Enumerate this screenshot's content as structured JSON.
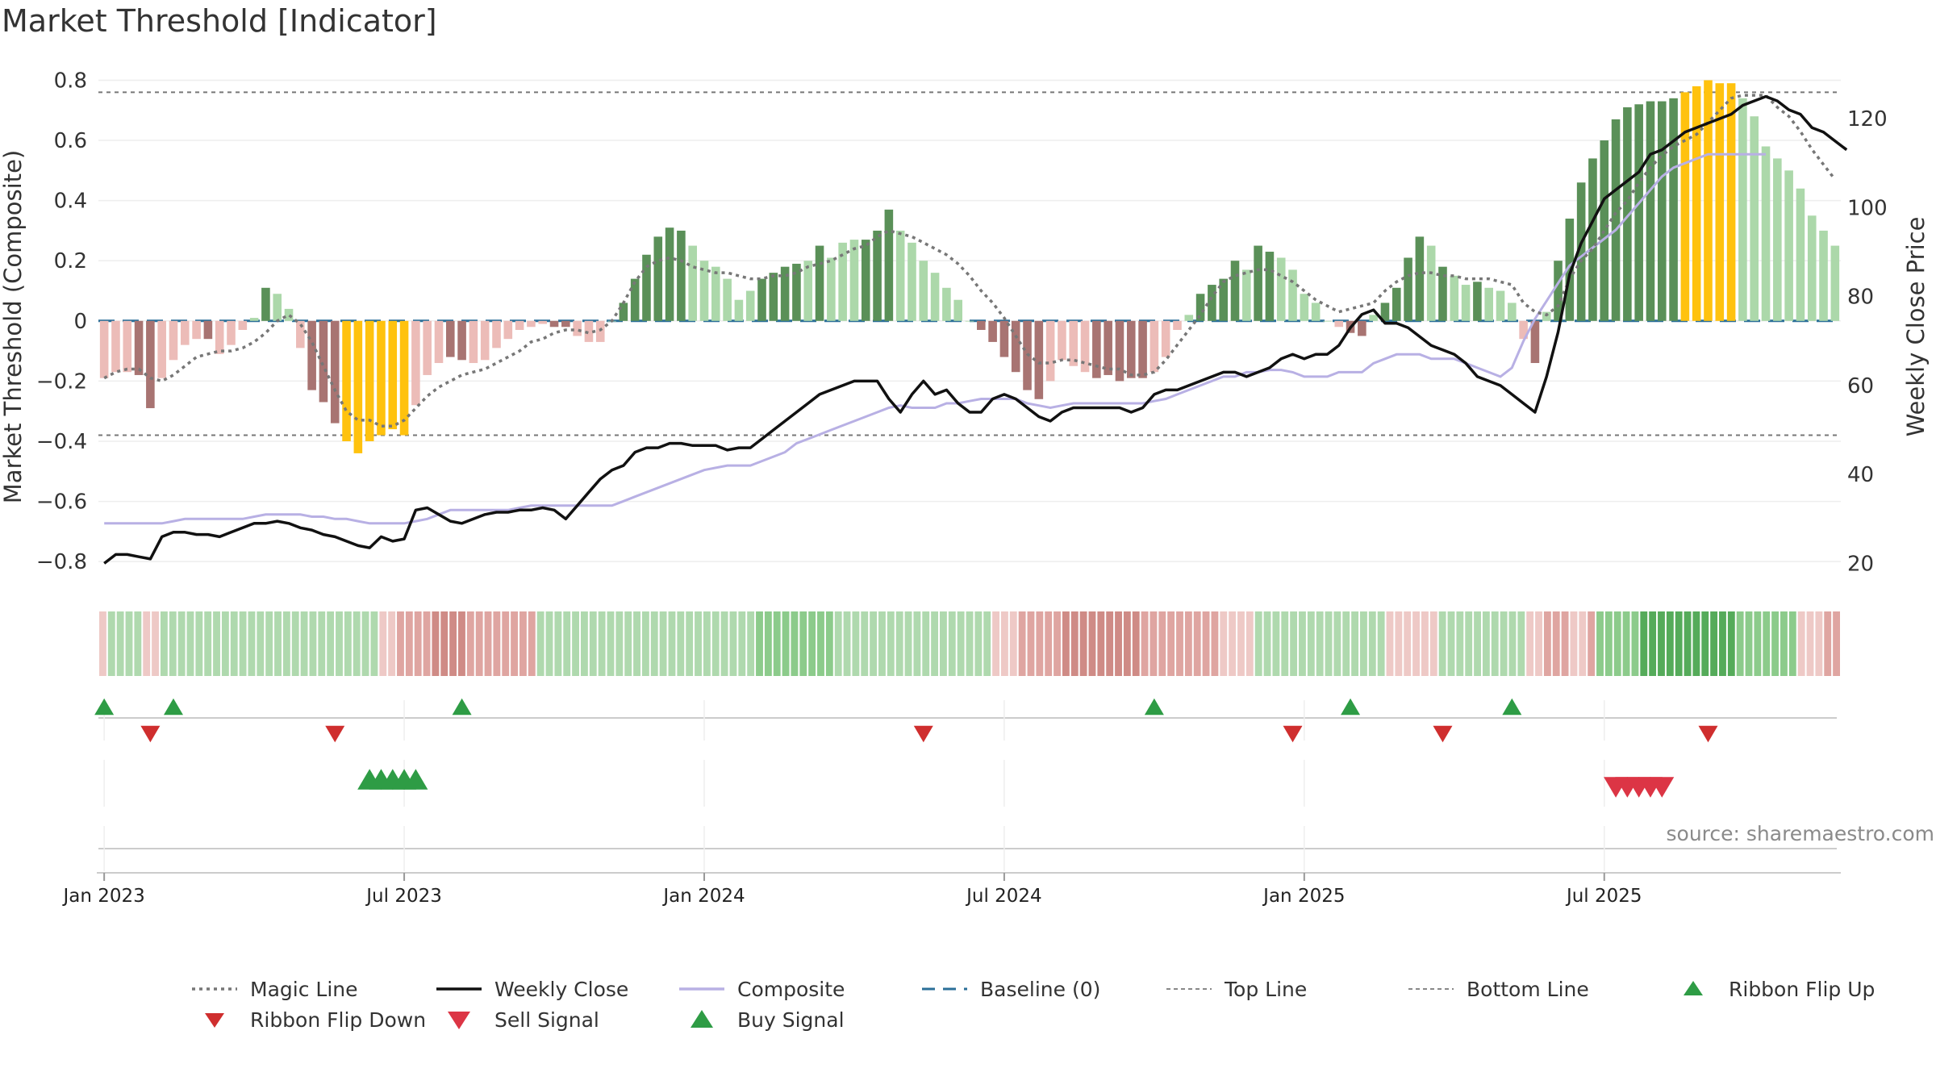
{
  "chart_data": {
    "type": "bar",
    "title": "Market Threshold [Indicator]",
    "ylabel_left": "Market Threshold (Composite)",
    "ylabel_right": "Weekly Close Price",
    "ylim_left": [
      -0.88,
      0.82
    ],
    "ylim_right": [
      15,
      130
    ],
    "left_ticks": [
      "0.8",
      "0.6",
      "0.4",
      "0.2",
      "0",
      "−0.2",
      "−0.4",
      "−0.6",
      "−0.8"
    ],
    "left_tick_values": [
      0.8,
      0.6,
      0.4,
      0.2,
      0,
      -0.2,
      -0.4,
      -0.6,
      -0.8
    ],
    "right_ticks": [
      "120",
      "100",
      "80",
      "60",
      "40",
      "20"
    ],
    "right_tick_values": [
      120,
      100,
      80,
      60,
      40,
      20
    ],
    "x_labels": [
      "Jan 2023",
      "Jul 2023",
      "Jan 2024",
      "Jul 2024",
      "Jan 2025",
      "Jul 2025"
    ],
    "x_label_weeks": [
      0,
      26,
      52,
      78,
      104,
      130
    ],
    "top_line": 0.76,
    "bottom_line": -0.38,
    "baseline": 0,
    "grid": true,
    "source": "source: sharemaestro.com",
    "colors": {
      "bull_strong": "#5a9058",
      "bull_weak": "#acd8aa",
      "bear_strong": "#a87472",
      "bear_weak": "#ecbcb8",
      "extreme": "#ffc20e",
      "close": "#111111",
      "composite": "#b8b0e4",
      "magic": "#777777",
      "baseline": "#2b6f98",
      "flip_up": "#2e9c45",
      "flip_down": "#cf2e2e",
      "sell": "#dc3545",
      "buy": "#2e9c45"
    },
    "composite_bars": [
      -0.19,
      -0.17,
      -0.17,
      -0.18,
      -0.29,
      -0.19,
      -0.13,
      -0.08,
      -0.06,
      -0.06,
      -0.11,
      -0.08,
      -0.03,
      0.01,
      0.11,
      0.09,
      0.04,
      -0.09,
      -0.23,
      -0.27,
      -0.34,
      -0.4,
      -0.44,
      -0.4,
      -0.38,
      -0.36,
      -0.38,
      -0.28,
      -0.18,
      -0.14,
      -0.12,
      -0.13,
      -0.14,
      -0.13,
      -0.09,
      -0.06,
      -0.03,
      -0.02,
      -0.01,
      -0.02,
      -0.02,
      -0.05,
      -0.07,
      -0.07,
      0.0,
      0.06,
      0.14,
      0.22,
      0.28,
      0.31,
      0.3,
      0.25,
      0.2,
      0.18,
      0.14,
      0.07,
      0.1,
      0.14,
      0.16,
      0.18,
      0.19,
      0.2,
      0.25,
      0.21,
      0.26,
      0.27,
      0.27,
      0.3,
      0.37,
      0.3,
      0.26,
      0.2,
      0.16,
      0.11,
      0.07,
      0.0,
      -0.03,
      -0.07,
      -0.12,
      -0.17,
      -0.23,
      -0.26,
      -0.2,
      -0.13,
      -0.15,
      -0.17,
      -0.19,
      -0.18,
      -0.2,
      -0.19,
      -0.19,
      -0.17,
      -0.12,
      -0.03,
      0.02,
      0.09,
      0.12,
      0.14,
      0.2,
      0.17,
      0.25,
      0.23,
      0.21,
      0.17,
      0.09,
      0.06,
      0.0,
      -0.02,
      -0.04,
      -0.05,
      0.02,
      0.06,
      0.11,
      0.21,
      0.28,
      0.25,
      0.18,
      0.15,
      0.12,
      0.13,
      0.11,
      0.1,
      0.06,
      -0.06,
      -0.14,
      0.03,
      0.2,
      0.34,
      0.46,
      0.54,
      0.6,
      0.67,
      0.71,
      0.72,
      0.73,
      0.73,
      0.74,
      0.76,
      0.78,
      0.8,
      0.79,
      0.79,
      0.74,
      0.68,
      0.58,
      0.54,
      0.5,
      0.44,
      0.35,
      0.3,
      0.25
    ],
    "bar_classes": [
      "bw",
      "bw",
      "bw",
      "bs",
      "bs",
      "bw",
      "bw",
      "bw",
      "bw",
      "bs",
      "bw",
      "bw",
      "bw",
      "gw",
      "gs",
      "gw",
      "gw",
      "bw",
      "bs",
      "bs",
      "bs",
      "ex",
      "ex",
      "ex",
      "ex",
      "ex",
      "ex",
      "bw",
      "bw",
      "bw",
      "bs",
      "bs",
      "bw",
      "bw",
      "bw",
      "bw",
      "bw",
      "bw",
      "bw",
      "bs",
      "bs",
      "bw",
      "bw",
      "bw",
      "gw",
      "gs",
      "gs",
      "gs",
      "gs",
      "gs",
      "gs",
      "gw",
      "gw",
      "gw",
      "gw",
      "gw",
      "gw",
      "gs",
      "gs",
      "gs",
      "gs",
      "gw",
      "gs",
      "gw",
      "gw",
      "gw",
      "gs",
      "gs",
      "gs",
      "gw",
      "gw",
      "gw",
      "gw",
      "gw",
      "gw",
      "gw",
      "bs",
      "bs",
      "bs",
      "bs",
      "bs",
      "bs",
      "bw",
      "bw",
      "bw",
      "bw",
      "bs",
      "bs",
      "bs",
      "bs",
      "bs",
      "bw",
      "bw",
      "bw",
      "gw",
      "gs",
      "gs",
      "gs",
      "gs",
      "gw",
      "gs",
      "gs",
      "gw",
      "gw",
      "gw",
      "gw",
      "gw",
      "bw",
      "bs",
      "bs",
      "gw",
      "gs",
      "gs",
      "gs",
      "gs",
      "gw",
      "gs",
      "gw",
      "gw",
      "gs",
      "gw",
      "gw",
      "gw",
      "bw",
      "bs",
      "gw",
      "gs",
      "gs",
      "gs",
      "gs",
      "gs",
      "gs",
      "gs",
      "gs",
      "gs",
      "gs",
      "gs",
      "ex",
      "ex",
      "ex",
      "ex",
      "ex",
      "gw",
      "gw",
      "gw",
      "gw",
      "gw",
      "gw",
      "gw",
      "gw",
      "gw"
    ],
    "magic_line": [
      -0.19,
      -0.17,
      -0.16,
      -0.16,
      -0.19,
      -0.2,
      -0.18,
      -0.15,
      -0.12,
      -0.11,
      -0.1,
      -0.1,
      -0.09,
      -0.07,
      -0.04,
      0.0,
      0.02,
      -0.01,
      -0.07,
      -0.15,
      -0.23,
      -0.3,
      -0.33,
      -0.33,
      -0.35,
      -0.35,
      -0.33,
      -0.29,
      -0.25,
      -0.22,
      -0.2,
      -0.18,
      -0.17,
      -0.16,
      -0.14,
      -0.12,
      -0.1,
      -0.07,
      -0.06,
      -0.04,
      -0.03,
      -0.03,
      -0.04,
      -0.03,
      0.0,
      0.06,
      0.13,
      0.18,
      0.2,
      0.21,
      0.2,
      0.18,
      0.17,
      0.16,
      0.16,
      0.15,
      0.14,
      0.14,
      0.15,
      0.15,
      0.16,
      0.18,
      0.19,
      0.2,
      0.22,
      0.24,
      0.25,
      0.28,
      0.3,
      0.29,
      0.28,
      0.26,
      0.24,
      0.22,
      0.19,
      0.15,
      0.1,
      0.06,
      0.01,
      -0.05,
      -0.11,
      -0.14,
      -0.14,
      -0.13,
      -0.13,
      -0.14,
      -0.15,
      -0.16,
      -0.16,
      -0.18,
      -0.18,
      -0.17,
      -0.13,
      -0.08,
      -0.03,
      0.02,
      0.08,
      0.13,
      0.15,
      0.16,
      0.17,
      0.17,
      0.15,
      0.13,
      0.1,
      0.07,
      0.05,
      0.03,
      0.04,
      0.05,
      0.06,
      0.1,
      0.13,
      0.15,
      0.16,
      0.16,
      0.15,
      0.15,
      0.14,
      0.14,
      0.14,
      0.13,
      0.12,
      0.06,
      0.03,
      0.02,
      0.05,
      0.14,
      0.2,
      0.24,
      0.3,
      0.36,
      0.4,
      0.46,
      0.51,
      0.55,
      0.58,
      0.6,
      0.62,
      0.66,
      0.7,
      0.74,
      0.75,
      0.75,
      0.75,
      0.71,
      0.68,
      0.63,
      0.57,
      0.52,
      0.47
    ],
    "composite_line": [
      29,
      29,
      29,
      29,
      29,
      29,
      29.5,
      30,
      30,
      30,
      30,
      30,
      30,
      30.5,
      31,
      31,
      31,
      31,
      30.5,
      30.5,
      30,
      30,
      29.5,
      29,
      29,
      29,
      29,
      29.5,
      30,
      31,
      32,
      32,
      32,
      32,
      32,
      32,
      32.5,
      33,
      33,
      33,
      33,
      33,
      33,
      33,
      33,
      34,
      35,
      36,
      37,
      38,
      39,
      40,
      41,
      41.5,
      42,
      42,
      42,
      43,
      44,
      45,
      47,
      48,
      49,
      50,
      51,
      52,
      53,
      54,
      55,
      55.5,
      55,
      55,
      55,
      56,
      56,
      56.5,
      57,
      57,
      57,
      57,
      56,
      55.5,
      55,
      55.5,
      56,
      56,
      56,
      56,
      56,
      56,
      56,
      56.5,
      57,
      58,
      59,
      60,
      61,
      62,
      62,
      63,
      63,
      63.5,
      63.5,
      63,
      62,
      62,
      62,
      63,
      63,
      63,
      65,
      66,
      67,
      67,
      67,
      66,
      66,
      66,
      65,
      64,
      63,
      62,
      64,
      70,
      75,
      79,
      83,
      87,
      89,
      91,
      93,
      95,
      98,
      101,
      104,
      107,
      109,
      110,
      111,
      112,
      112,
      112,
      112,
      112,
      112
    ],
    "weekly_close": [
      20,
      22,
      22,
      21.5,
      21,
      26,
      27,
      27,
      26.5,
      26.5,
      26,
      27,
      28,
      29,
      29,
      29.5,
      29,
      28,
      27.5,
      26.5,
      26,
      25,
      24,
      23.5,
      26,
      25,
      25.5,
      32,
      32.5,
      31,
      29.5,
      29,
      30,
      31,
      31.5,
      31.5,
      32,
      32,
      32.5,
      32,
      30,
      33,
      36,
      39,
      41,
      42,
      45,
      46,
      46,
      47,
      47,
      46.5,
      46.5,
      46.5,
      45.5,
      46,
      46,
      48,
      50,
      52,
      54,
      56,
      58,
      59,
      60,
      61,
      61,
      61,
      57,
      54,
      58,
      61,
      58,
      59,
      56,
      54,
      54,
      57,
      58,
      57,
      55,
      53,
      52,
      54,
      55,
      55,
      55,
      55,
      55,
      54,
      55,
      58,
      59,
      59,
      60,
      61,
      62,
      63,
      63,
      62,
      63,
      64,
      66,
      67,
      66,
      67,
      67,
      69,
      73,
      76,
      77,
      74,
      74,
      73,
      71,
      69,
      68,
      67,
      65,
      62,
      61,
      60,
      58,
      56,
      54,
      62,
      72,
      85,
      92,
      97,
      102,
      104,
      106,
      108,
      112,
      113,
      115,
      117,
      118,
      119,
      120,
      121,
      123,
      124,
      125,
      124,
      122,
      121,
      118,
      117,
      115,
      113
    ],
    "ribbon_classes": [
      "r1",
      "g1",
      "g1",
      "g1",
      "g1",
      "r1",
      "r1",
      "g1",
      "g1",
      "g1",
      "g1",
      "g1",
      "g1",
      "g1",
      "g1",
      "g1",
      "g1",
      "g1",
      "g1",
      "g1",
      "g1",
      "g1",
      "g1",
      "g1",
      "g1",
      "g1",
      "g1",
      "g1",
      "g1",
      "g1",
      "g1",
      "g1",
      "r1",
      "r1",
      "r2",
      "r2",
      "r2",
      "r2",
      "r3",
      "r3",
      "r3",
      "r3",
      "r2",
      "r2",
      "r2",
      "r2",
      "r2",
      "r2",
      "r2",
      "r2",
      "g1",
      "g1",
      "g1",
      "g1",
      "g1",
      "g1",
      "g1",
      "g1",
      "g1",
      "g1",
      "g1",
      "g1",
      "g1",
      "g1",
      "g1",
      "g1",
      "g1",
      "g1",
      "g1",
      "g1",
      "g1",
      "g1",
      "g1",
      "g1",
      "g1",
      "g2",
      "g2",
      "g2",
      "g2",
      "g2",
      "g2",
      "g2",
      "g2",
      "g2",
      "g1",
      "g1",
      "g1",
      "g1",
      "g1",
      "g1",
      "g1",
      "g1",
      "g1",
      "g1",
      "g1",
      "g1",
      "g1",
      "g1",
      "g1",
      "g1",
      "g1",
      "g1",
      "r1",
      "r1",
      "r1",
      "r2",
      "r2",
      "r2",
      "r2",
      "r2",
      "r3",
      "r3",
      "r3",
      "r3",
      "r3",
      "r3",
      "r3",
      "r3",
      "r3",
      "r2",
      "r2",
      "r2",
      "r2",
      "r2",
      "r2",
      "r2",
      "r2",
      "r2",
      "r1",
      "r1",
      "r1",
      "r1",
      "g1",
      "g1",
      "g1",
      "g1",
      "g1",
      "g1",
      "g1",
      "g1",
      "g1",
      "g1",
      "g1",
      "g1",
      "g1",
      "g1",
      "g1",
      "r1",
      "r1",
      "r1",
      "r1",
      "r1",
      "r1",
      "g1",
      "g1",
      "g1",
      "g1",
      "g1",
      "g1",
      "g1",
      "g1",
      "g1",
      "g1",
      "r1",
      "r1",
      "r2",
      "r2",
      "r2",
      "r1",
      "r1",
      "r2",
      "g2",
      "g2",
      "g2",
      "g2",
      "g2",
      "g3",
      "g3",
      "g3",
      "g3",
      "g3",
      "g3",
      "g3",
      "g3",
      "g3",
      "g3",
      "g3",
      "g2",
      "g2",
      "g2",
      "g2",
      "g2",
      "g2",
      "g2",
      "r1",
      "r1",
      "r1",
      "r2",
      "r2"
    ],
    "ribbon_flip_up_weeks": [
      0,
      6,
      31,
      91,
      108,
      122
    ],
    "ribbon_flip_down_weeks": [
      4,
      20,
      71,
      103,
      116,
      139
    ],
    "buy_signal_weeks": [
      23,
      24,
      25,
      26,
      27
    ],
    "sell_signal_weeks": [
      131,
      132,
      133,
      134,
      135
    ],
    "legend": [
      {
        "label": "Magic Line",
        "kind": "dotted"
      },
      {
        "label": "Weekly Close",
        "kind": "solid"
      },
      {
        "label": "Composite",
        "kind": "composite"
      },
      {
        "label": "Baseline (0)",
        "kind": "dashed"
      },
      {
        "label": "Top Line",
        "kind": "thin-dotted"
      },
      {
        "label": "Bottom Line",
        "kind": "thin-dotted"
      },
      {
        "label": "Ribbon Flip Up",
        "kind": "tri-up"
      },
      {
        "label": "Ribbon Flip Down",
        "kind": "tri-down"
      },
      {
        "label": "Sell Signal",
        "kind": "tri-down-sell"
      },
      {
        "label": "Buy Signal",
        "kind": "tri-up-buy"
      }
    ]
  }
}
